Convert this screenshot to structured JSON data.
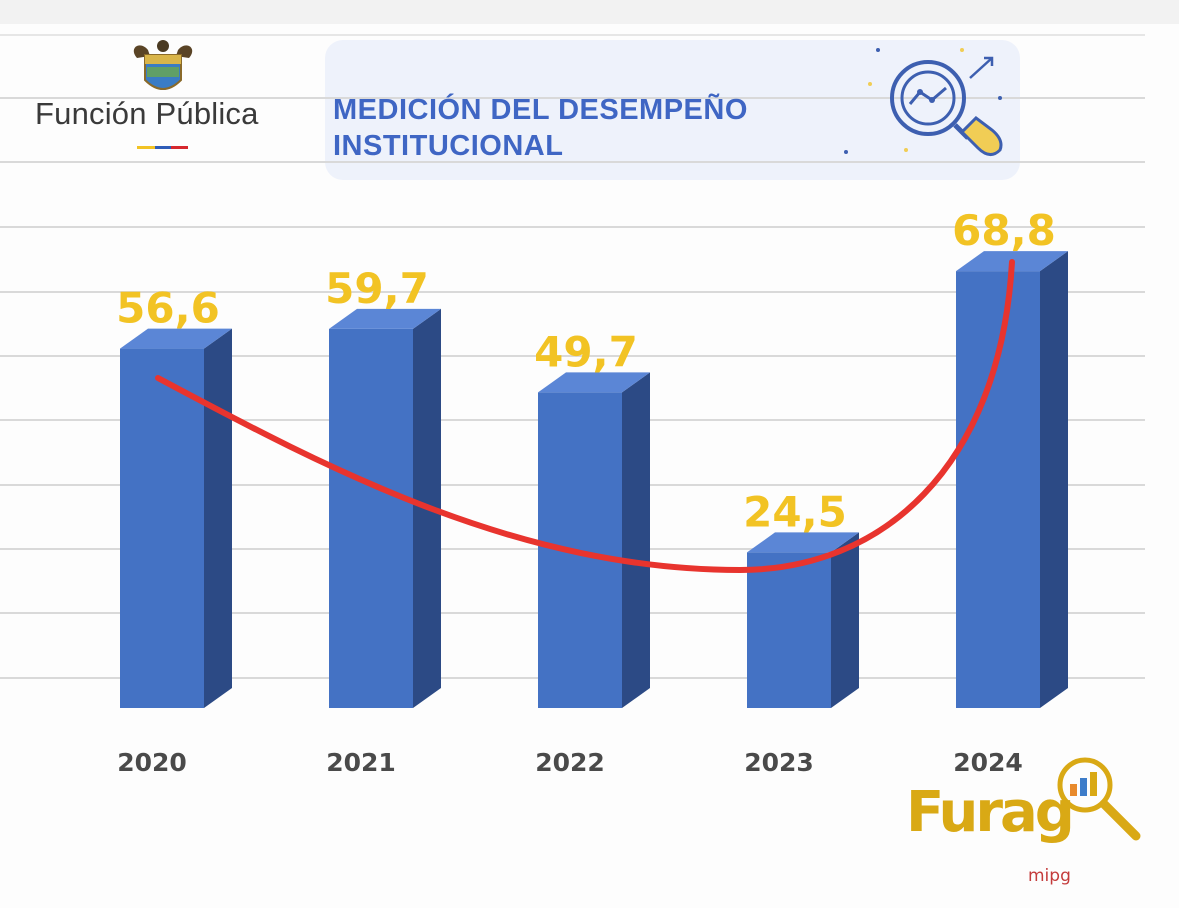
{
  "header": {
    "logo_text": "Función Pública",
    "banner_title": "MEDICIÓN DEL DESEMPEÑO INSTITUCIONAL",
    "banner_icon": "analytics-magnifier-icon",
    "emblem_icon": "coat-of-arms-icon"
  },
  "footer_logo": {
    "text": "Furag",
    "subtext": "mipg",
    "icon": "chart-magnifier-icon"
  },
  "colors": {
    "bar_front": "#4472c4",
    "bar_side": "#2c4a85",
    "bar_top": "#5b86d6",
    "label": "#f2c324",
    "trend_line": "#e8342e",
    "banner_text": "#3f66c4",
    "furag": "#d9a915"
  },
  "chart_data": {
    "type": "bar",
    "categories": [
      "2020",
      "2021",
      "2022",
      "2023",
      "2024"
    ],
    "values": [
      56.6,
      59.7,
      49.7,
      24.5,
      68.8
    ],
    "labels": [
      "56,6",
      "59,7",
      "49,7",
      "24,5",
      "68,8"
    ],
    "ylim": [
      0,
      70
    ],
    "grid": true,
    "trend_line": true
  }
}
